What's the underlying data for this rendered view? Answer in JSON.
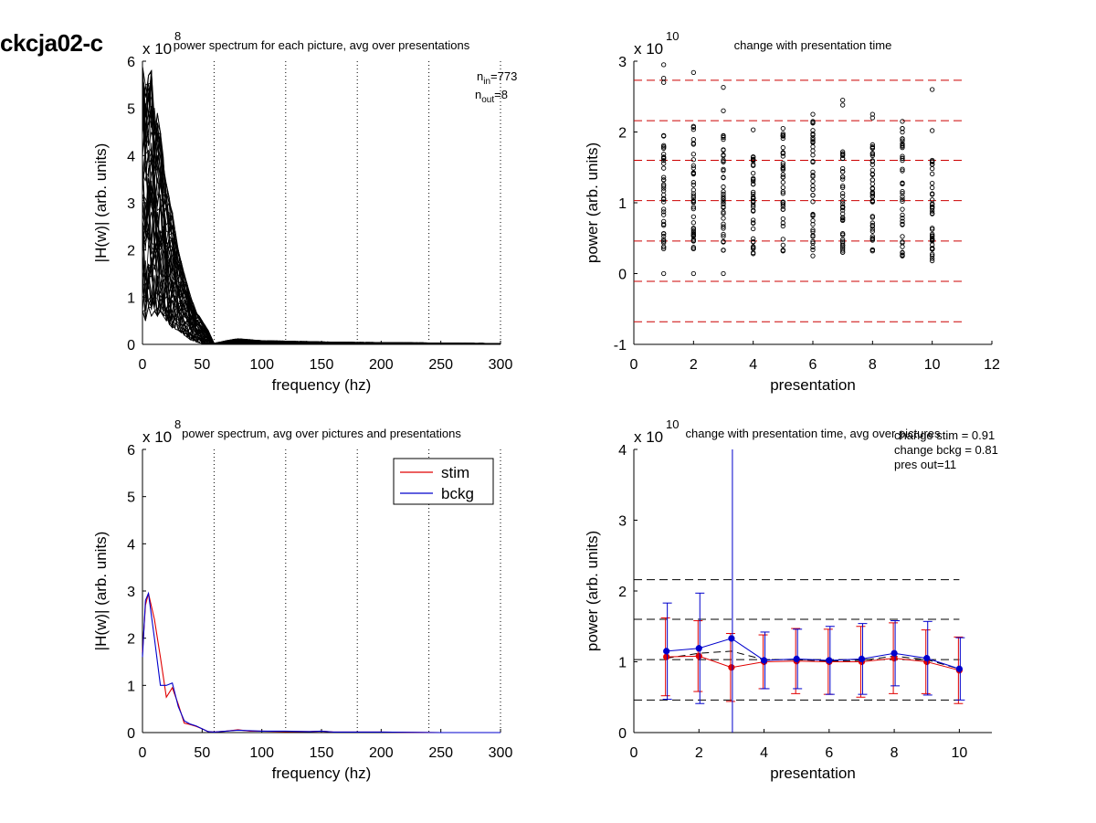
{
  "figure_title": "ckcja02-c",
  "colors": {
    "stim": "#e00000",
    "bckg": "#0000cc",
    "ref": "#cc0000",
    "black": "#000000"
  },
  "chart_data": [
    {
      "id": "tl",
      "type": "line",
      "title": "power spectrum for each picture, avg over presentations",
      "xlabel": "frequency (hz)",
      "ylabel": "|H(w)| (arb. units)",
      "exponent": "8",
      "xlim": [
        0,
        300
      ],
      "ylim": [
        0,
        6
      ],
      "xticks": [
        0,
        50,
        100,
        150,
        200,
        250,
        300
      ],
      "yticks": [
        0,
        1,
        2,
        3,
        4,
        5,
        6
      ],
      "vlines": [
        60,
        120,
        180,
        240,
        300
      ],
      "annotations": [
        {
          "main": "n",
          "sub": "in",
          "rest": "=773"
        },
        {
          "main": "n",
          "sub": "out",
          "rest": "=8"
        }
      ],
      "envelope": {
        "x": [
          0,
          2.5,
          5,
          7.5,
          10,
          12.5,
          15,
          17.5,
          20,
          25,
          30,
          35,
          40,
          45,
          50,
          55,
          60,
          70,
          80,
          90,
          100,
          120,
          140,
          160,
          200,
          250,
          300
        ],
        "upper": [
          5.9,
          5.5,
          5.7,
          5.8,
          5.0,
          4.9,
          4.5,
          4.0,
          3.4,
          2.8,
          2.0,
          1.5,
          1.05,
          0.7,
          0.5,
          0.3,
          0.02,
          0.08,
          0.12,
          0.1,
          0.08,
          0.07,
          0.06,
          0.05,
          0.04,
          0.03,
          0.02
        ],
        "lower": [
          0.7,
          0.5,
          0.8,
          0.6,
          0.7,
          0.6,
          0.7,
          0.6,
          0.5,
          0.35,
          0.3,
          0.2,
          0.1,
          0.05,
          0.02,
          0.01,
          0.0,
          0.0,
          0.0,
          0.0,
          0.0,
          0.0,
          0.0,
          0.0,
          0.0,
          0.0,
          0.0
        ]
      }
    },
    {
      "id": "tr",
      "type": "scatter",
      "title": "change with presentation time",
      "xlabel": "presentation",
      "ylabel": "power (arb. units)",
      "exponent": "10",
      "xlim": [
        0,
        12
      ],
      "ylim": [
        -1,
        3
      ],
      "xticks": [
        0,
        2,
        4,
        6,
        8,
        10,
        12
      ],
      "yticks": [
        -1,
        0,
        1,
        2,
        3
      ],
      "hlines": [
        2.73,
        2.16,
        1.6,
        1.03,
        0.46,
        -0.11,
        -0.68
      ],
      "columns": [
        {
          "x": 1,
          "min": 0.35,
          "max": 1.95,
          "outliers": [
            0.0,
            2.7,
            2.76,
            2.95
          ]
        },
        {
          "x": 2,
          "min": 0.35,
          "max": 2.08,
          "outliers": [
            0.0,
            2.84
          ]
        },
        {
          "x": 3,
          "min": 0.33,
          "max": 1.95,
          "outliers": [
            0.0,
            2.3,
            2.63
          ]
        },
        {
          "x": 4,
          "min": 0.28,
          "max": 1.65,
          "outliers": [
            2.03
          ]
        },
        {
          "x": 5,
          "min": 0.32,
          "max": 2.05,
          "outliers": []
        },
        {
          "x": 6,
          "min": 0.25,
          "max": 2.15,
          "outliers": [
            2.25
          ]
        },
        {
          "x": 7,
          "min": 0.3,
          "max": 1.72,
          "outliers": [
            2.38,
            2.45
          ]
        },
        {
          "x": 8,
          "min": 0.32,
          "max": 1.82,
          "outliers": [
            2.2,
            2.25
          ]
        },
        {
          "x": 9,
          "min": 0.25,
          "max": 2.05,
          "outliers": [
            2.15
          ]
        },
        {
          "x": 10,
          "min": 0.18,
          "max": 1.6,
          "outliers": [
            2.02,
            2.6
          ]
        }
      ]
    },
    {
      "id": "bl",
      "type": "line",
      "title": "power spectrum, avg over pictures and presentations",
      "xlabel": "frequency (hz)",
      "ylabel": "|H(w)| (arb. units)",
      "exponent": "8",
      "xlim": [
        0,
        300
      ],
      "ylim": [
        0,
        6
      ],
      "xticks": [
        0,
        50,
        100,
        150,
        200,
        250,
        300
      ],
      "yticks": [
        0,
        1,
        2,
        3,
        4,
        5,
        6
      ],
      "vlines": [
        60,
        120,
        180,
        240,
        300
      ],
      "legend": {
        "position": "top-right",
        "entries": [
          "stim",
          "bckg"
        ]
      },
      "series": [
        {
          "name": "stim",
          "color": "#e00000",
          "x": [
            0,
            2.5,
            5,
            10,
            15,
            20,
            25,
            30,
            35,
            40,
            45,
            50,
            55,
            60,
            70,
            80,
            90,
            100,
            120,
            140,
            150,
            160,
            200,
            250,
            300
          ],
          "y": [
            1.7,
            2.7,
            2.95,
            2.4,
            1.6,
            0.75,
            0.95,
            0.6,
            0.2,
            0.17,
            0.13,
            0.08,
            0.02,
            0.01,
            0.03,
            0.06,
            0.03,
            0.03,
            0.02,
            0.02,
            0.03,
            0.01,
            0.01,
            0.0,
            0.0
          ]
        },
        {
          "name": "bckg",
          "color": "#0000cc",
          "x": [
            0,
            2.5,
            5,
            10,
            15,
            20,
            25,
            30,
            35,
            40,
            45,
            50,
            55,
            60,
            70,
            80,
            90,
            100,
            120,
            140,
            150,
            160,
            200,
            250,
            300
          ],
          "y": [
            1.6,
            2.8,
            2.95,
            2.0,
            1.0,
            1.0,
            1.05,
            0.55,
            0.25,
            0.18,
            0.14,
            0.08,
            0.02,
            0.01,
            0.03,
            0.05,
            0.04,
            0.03,
            0.03,
            0.02,
            0.03,
            0.01,
            0.01,
            0.0,
            0.0
          ]
        }
      ]
    },
    {
      "id": "br",
      "type": "line",
      "title": "change with presentation time, avg over pictures",
      "xlabel": "presentation",
      "ylabel": "power (arb. units)",
      "exponent": "10",
      "xlim": [
        0,
        11
      ],
      "ylim": [
        0,
        4
      ],
      "xticks": [
        0,
        2,
        4,
        6,
        8,
        10
      ],
      "yticks": [
        0,
        1,
        2,
        3,
        4
      ],
      "hlines": [
        2.16,
        1.6,
        1.03,
        0.46
      ],
      "annotations": [
        "change stim = 0.91",
        "change bckg = 0.81",
        "pres out=11"
      ],
      "series": [
        {
          "name": "stim",
          "color": "#e00000",
          "x": [
            1,
            2,
            3,
            4,
            5,
            6,
            7,
            8,
            9,
            10
          ],
          "y": [
            1.07,
            1.08,
            0.92,
            1.0,
            1.01,
            1.0,
            1.0,
            1.05,
            1.0,
            0.88
          ],
          "err": [
            0.55,
            0.5,
            0.48,
            0.38,
            0.46,
            0.46,
            0.5,
            0.5,
            0.45,
            0.47
          ]
        },
        {
          "name": "bckg",
          "color": "#0000cc",
          "x": [
            1,
            2,
            3,
            4,
            5,
            6,
            7,
            8,
            9,
            10
          ],
          "y": [
            1.15,
            1.19,
            1.33,
            1.02,
            1.04,
            1.02,
            1.04,
            1.12,
            1.05,
            0.9
          ],
          "err": [
            0.68,
            0.78,
            2.9,
            0.4,
            0.42,
            0.48,
            0.5,
            0.46,
            0.52,
            0.44
          ]
        },
        {
          "name": "",
          "color": "#000000",
          "x": [
            1,
            2,
            3,
            4,
            5,
            6,
            7,
            8,
            9,
            10
          ],
          "y": [
            1.05,
            1.12,
            1.15,
            1.03,
            1.03,
            1.01,
            1.02,
            1.08,
            1.03,
            0.9
          ]
        }
      ]
    }
  ]
}
